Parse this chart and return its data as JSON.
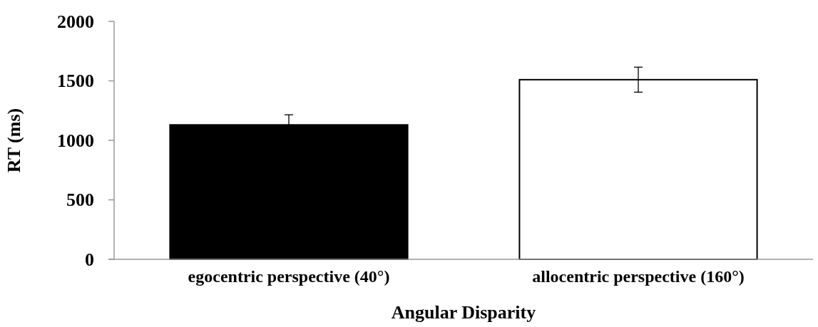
{
  "chart_data": {
    "type": "bar",
    "xlabel": "Angular Disparity",
    "ylabel": "RT (ms)",
    "categories": [
      "egocentric perspective (40°)",
      "allocentric perspective (160°)"
    ],
    "values": [
      1130,
      1510
    ],
    "errors": [
      85,
      105
    ],
    "colors": [
      "#000000",
      "#ffffff"
    ],
    "ylim": [
      0,
      2000
    ],
    "yticks": [
      0,
      500,
      1000,
      1500,
      2000
    ],
    "grid": false
  }
}
